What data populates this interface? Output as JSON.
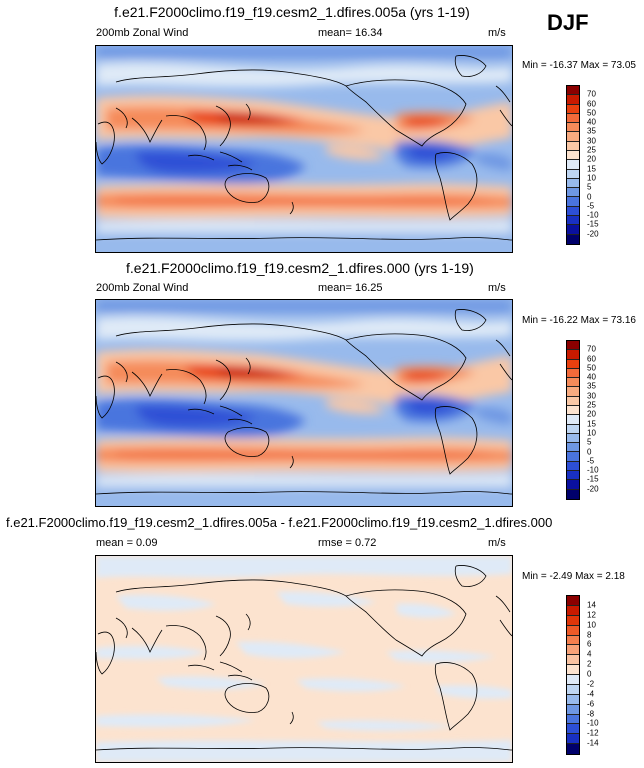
{
  "season": "DJF",
  "panels": [
    {
      "title": "f.e21.F2000climo.f19_f19.cesm2_1.dfires.005a (yrs 1-19)",
      "left_label": "200mb Zonal Wind",
      "center_label": "mean=  16.34",
      "units": "m/s",
      "minmax": "Min = -16.37 Max =  73.05"
    },
    {
      "title": "f.e21.F2000climo.f19_f19.cesm2_1.dfires.000 (yrs 1-19)",
      "left_label": "200mb Zonal Wind",
      "center_label": "mean=  16.25",
      "units": "m/s",
      "minmax": "Min = -16.22 Max =  73.16"
    },
    {
      "title": "f.e21.F2000climo.f19_f19.cesm2_1.dfires.005a - f.e21.F2000climo.f19_f19.cesm2_1.dfires.000",
      "left_label": "mean =   0.09",
      "center_label": "rmse =   0.72",
      "units": "m/s",
      "minmax": "Min =  -2.49 Max =   2.18"
    }
  ],
  "colorbars": [
    {
      "labels": [
        "70",
        "60",
        "50",
        "40",
        "35",
        "30",
        "25",
        "20",
        "15",
        "10",
        "5",
        "0",
        "-5",
        "-10",
        "-15",
        "-20"
      ],
      "colors": [
        "#8b0000",
        "#c81a00",
        "#e8400f",
        "#f26a3a",
        "#f58b5a",
        "#f8ab80",
        "#fac8a6",
        "#fce3cf",
        "#dfeaf7",
        "#bfd6f2",
        "#98baec",
        "#6e97e3",
        "#4a74de",
        "#2d4fd6",
        "#1930c2",
        "#0a109e",
        "#00006b"
      ]
    },
    {
      "labels": [
        "70",
        "60",
        "50",
        "40",
        "35",
        "30",
        "25",
        "20",
        "15",
        "10",
        "5",
        "0",
        "-5",
        "-10",
        "-15",
        "-20"
      ],
      "colors": [
        "#8b0000",
        "#c81a00",
        "#e8400f",
        "#f26a3a",
        "#f58b5a",
        "#f8ab80",
        "#fac8a6",
        "#fce3cf",
        "#dfeaf7",
        "#bfd6f2",
        "#98baec",
        "#6e97e3",
        "#4a74de",
        "#2d4fd6",
        "#1930c2",
        "#0a109e",
        "#00006b"
      ]
    },
    {
      "labels": [
        "14",
        "12",
        "10",
        "8",
        "6",
        "4",
        "2",
        "0",
        "-2",
        "-4",
        "-6",
        "-8",
        "-10",
        "-12",
        "-14"
      ],
      "colors": [
        "#8b0000",
        "#c81a00",
        "#e0360a",
        "#ee5a28",
        "#f47f4e",
        "#f7a278",
        "#f9c3a2",
        "#fce3cf",
        "#dfeaf7",
        "#bfd6f2",
        "#98baec",
        "#6e97e3",
        "#4a74de",
        "#2d4fd6",
        "#1930c2",
        "#00006b"
      ]
    }
  ],
  "chart_data": [
    {
      "type": "heatmap",
      "title": "f.e21.F2000climo.f19_f19.cesm2_1.dfires.005a (yrs 1-19)",
      "variable": "200mb Zonal Wind",
      "units": "m/s",
      "mean": 16.34,
      "min": -16.37,
      "max": 73.05,
      "levels": [
        -20,
        -15,
        -10,
        -5,
        0,
        5,
        10,
        15,
        20,
        25,
        30,
        35,
        40,
        50,
        60,
        70
      ],
      "projection": "cylindrical equidistant, global, centered on 180",
      "features": [
        "subtropical westerly jet max near Japan (>70 m/s)",
        "easterlies over Maritime Continent / Indian Ocean",
        "easterlies over northern South America",
        "Southern Hemisphere westerly band"
      ]
    },
    {
      "type": "heatmap",
      "title": "f.e21.F2000climo.f19_f19.cesm2_1.dfires.000 (yrs 1-19)",
      "variable": "200mb Zonal Wind",
      "units": "m/s",
      "mean": 16.25,
      "min": -16.22,
      "max": 73.16,
      "levels": [
        -20,
        -15,
        -10,
        -5,
        0,
        5,
        10,
        15,
        20,
        25,
        30,
        35,
        40,
        50,
        60,
        70
      ],
      "projection": "cylindrical equidistant, global, centered on 180"
    },
    {
      "type": "heatmap",
      "title": "f.e21.F2000climo.f19_f19.cesm2_1.dfires.005a - f.e21.F2000climo.f19_f19.cesm2_1.dfires.000",
      "units": "m/s",
      "mean": 0.09,
      "rmse": 0.72,
      "min": -2.49,
      "max": 2.18,
      "levels": [
        -14,
        -12,
        -10,
        -8,
        -6,
        -4,
        -2,
        0,
        2,
        4,
        6,
        8,
        10,
        12,
        14
      ],
      "projection": "cylindrical equidistant, global, centered on 180"
    }
  ]
}
